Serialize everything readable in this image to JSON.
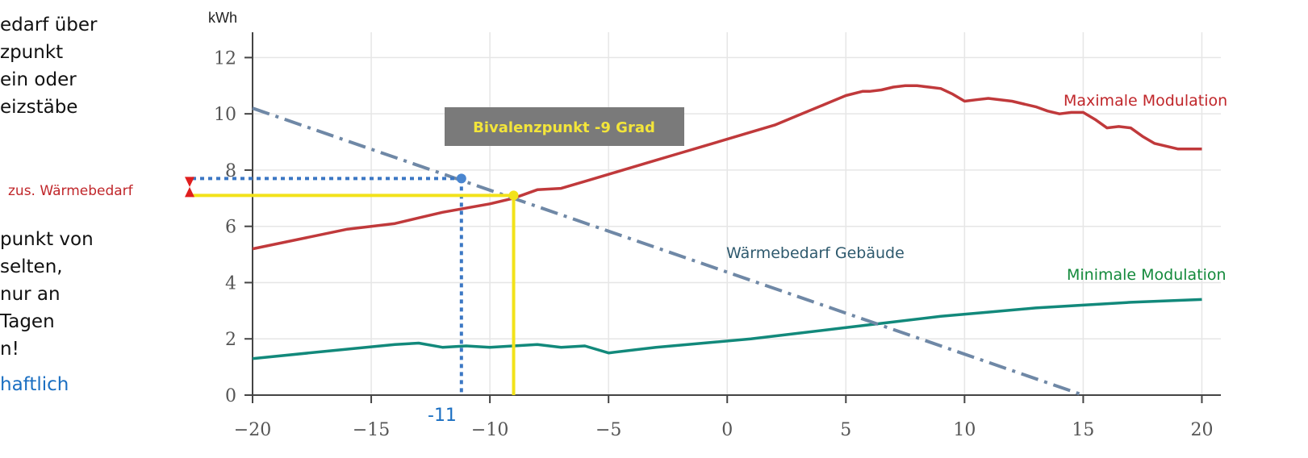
{
  "chart_data": {
    "type": "line",
    "ylabel": "kWh",
    "xlabel": "",
    "xlim": [
      -20,
      20.8
    ],
    "ylim": [
      0,
      12.9
    ],
    "x_ticks": [
      -20,
      -15,
      -10,
      -5,
      0,
      5,
      10,
      15,
      20
    ],
    "y_ticks": [
      0,
      2,
      4,
      6,
      8,
      10,
      12
    ],
    "grid": true,
    "series": [
      {
        "name": "Maximale Modulation",
        "color": "#c0393b",
        "style": "solid",
        "x": [
          -20,
          -16,
          -14,
          -13,
          -12,
          -10,
          -9,
          -8,
          -7,
          -6,
          -5,
          -4,
          -3,
          -2,
          -1,
          0,
          1,
          2,
          3,
          4,
          5,
          5.7,
          6,
          6.5,
          7,
          7.5,
          8,
          8.5,
          9,
          9.5,
          10,
          10.5,
          11,
          11.5,
          12,
          12.5,
          13,
          13.5,
          14,
          14.5,
          15,
          15.5,
          16,
          16.5,
          17,
          17.5,
          18,
          18.5,
          19,
          19.5,
          20
        ],
        "y": [
          5.2,
          5.9,
          6.1,
          6.3,
          6.5,
          6.8,
          7.0,
          7.3,
          7.35,
          7.6,
          7.85,
          8.1,
          8.35,
          8.6,
          8.85,
          9.1,
          9.35,
          9.6,
          9.95,
          10.3,
          10.65,
          10.8,
          10.8,
          10.85,
          10.95,
          11.0,
          11.0,
          10.95,
          10.9,
          10.7,
          10.45,
          10.5,
          10.55,
          10.5,
          10.45,
          10.35,
          10.25,
          10.1,
          10.0,
          10.05,
          10.05,
          9.8,
          9.5,
          9.55,
          9.5,
          9.2,
          8.95,
          8.85,
          8.75,
          8.75,
          8.75
        ]
      },
      {
        "name": "Minimale Modulation",
        "color": "#12897b",
        "style": "solid",
        "x": [
          -20,
          -17,
          -14,
          -13,
          -12,
          -11,
          -10,
          -9,
          -8,
          -7,
          -6,
          -5,
          -3,
          -1,
          1,
          3,
          5,
          7,
          9,
          11,
          13,
          15,
          17,
          20
        ],
        "y": [
          1.3,
          1.55,
          1.8,
          1.85,
          1.7,
          1.75,
          1.7,
          1.75,
          1.8,
          1.7,
          1.75,
          1.5,
          1.7,
          1.85,
          2.0,
          2.2,
          2.4,
          2.6,
          2.8,
          2.95,
          3.1,
          3.2,
          3.3,
          3.4
        ]
      },
      {
        "name": "Wärmebedarf Gebäude",
        "color": "#6f88a6",
        "style": "dashdot",
        "x": [
          -20,
          15
        ],
        "y": [
          10.2,
          0
        ]
      }
    ],
    "annotations": {
      "bivalenz_label": "Bivalenzpunkt -9 Grad",
      "bivalenz_x": -9,
      "bivalenz_y": 7.1,
      "zus_label": "zus. Wärmebedarf",
      "minus11_label": "-11",
      "minus11_x": -11.2,
      "minus11_y": 7.7,
      "waermebedarf_label": "Wärmebedarf Gebäude"
    }
  },
  "left_text": {
    "line1": "edarf über",
    "line2": "zpunkt",
    "line3": "ein oder",
    "line4": "eizstäbe",
    "line5": "punkt von",
    "line6": "selten,",
    "line7": "nur an",
    "line8": "Tagen",
    "line9": "n!",
    "line10": "haftlich"
  }
}
